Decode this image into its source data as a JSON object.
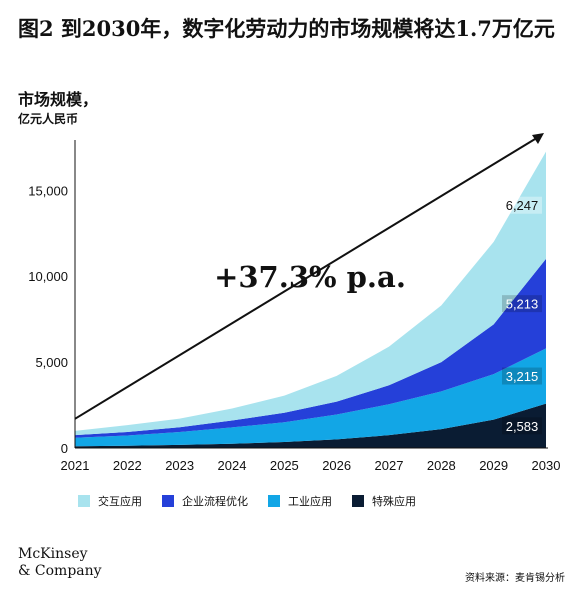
{
  "title": "图2 到2030年，数字化劳动力的市场规模将达1.7万亿元",
  "ylabel_line1": "市场规模，",
  "ylabel_line2": "亿元人民币",
  "growth_label": "+37.3% p.a.",
  "logo_line1": "McKinsey",
  "logo_line2": "& Company",
  "source": "资料来源：麦肯锡分析",
  "colors": {
    "交互应用": "#a8e3ee",
    "企业流程优化": "#2540d9",
    "工业应用": "#12a6e6",
    "特殊应用": "#0a1c33"
  },
  "chart_data": {
    "type": "area",
    "stacked": true,
    "x": [
      "2021",
      "2022",
      "2023",
      "2024",
      "2025",
      "2026",
      "2027",
      "2028",
      "2029",
      "2030"
    ],
    "ylim": [
      0,
      17000
    ],
    "yticks": [
      0,
      5000,
      10000,
      15000
    ],
    "ytick_labels": [
      "0",
      "5,000",
      "10,000",
      "15,000"
    ],
    "series": [
      {
        "name": "特殊应用",
        "values": [
          100,
          130,
          180,
          250,
          350,
          500,
          750,
          1100,
          1650,
          2583
        ]
      },
      {
        "name": "工业应用",
        "values": [
          500,
          600,
          750,
          950,
          1150,
          1450,
          1800,
          2200,
          2650,
          3215
        ]
      },
      {
        "name": "企业流程优化",
        "values": [
          150,
          200,
          280,
          400,
          550,
          750,
          1100,
          1700,
          2900,
          5213
        ]
      },
      {
        "name": "交互应用",
        "values": [
          250,
          400,
          500,
          700,
          1000,
          1500,
          2250,
          3300,
          4800,
          6247
        ]
      }
    ],
    "data_labels": [
      {
        "series": "交互应用",
        "text": "6,247"
      },
      {
        "series": "企业流程优化",
        "text": "5,213"
      },
      {
        "series": "工业应用",
        "text": "3,215"
      },
      {
        "series": "特殊应用",
        "text": "2,583"
      }
    ]
  }
}
